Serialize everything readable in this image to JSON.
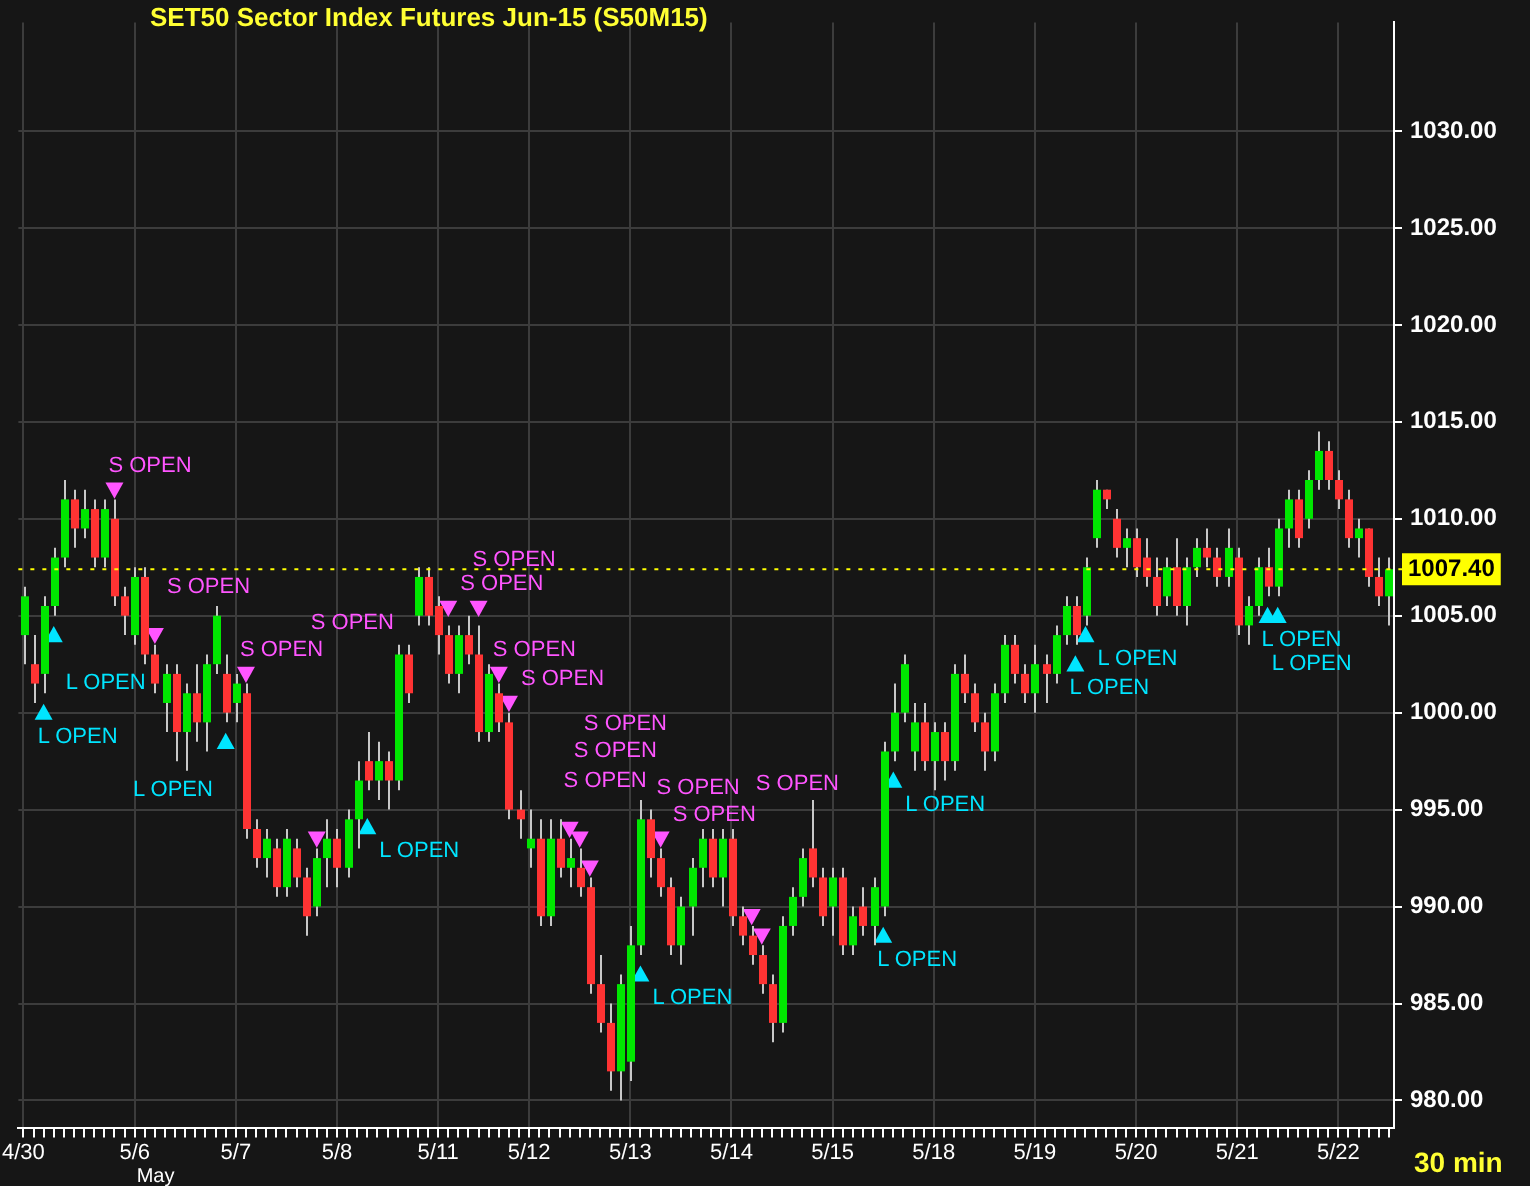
{
  "chart_data": {
    "type": "candlestick",
    "title": "SET50 Sector Index Futures Jun-15 (S50M15)",
    "categories": [
      "4/30",
      null,
      null,
      null,
      null,
      null,
      null,
      null,
      null,
      null,
      null,
      "5/6",
      null,
      null,
      null,
      null,
      null,
      null,
      null,
      null,
      null,
      "5/7",
      null,
      null,
      null,
      null,
      null,
      null,
      null,
      null,
      null,
      "5/8",
      null,
      null,
      null,
      null,
      null,
      null,
      null,
      null,
      null,
      "5/11",
      null,
      null,
      null,
      null,
      null,
      null,
      null,
      null,
      "5/12",
      null,
      null,
      null,
      null,
      null,
      null,
      null,
      null,
      null,
      "5/13",
      null,
      null,
      null,
      null,
      null,
      null,
      null,
      null,
      null,
      "5/14",
      null,
      null,
      null,
      null,
      null,
      null,
      null,
      null,
      null,
      "5/15",
      null,
      null,
      null,
      null,
      null,
      null,
      null,
      null,
      null,
      "5/18",
      null,
      null,
      null,
      null,
      null,
      null,
      null,
      null,
      null,
      "5/19",
      null,
      null,
      null,
      null,
      null,
      null,
      null,
      null,
      null,
      "5/20",
      null,
      null,
      null,
      null,
      null,
      null,
      null,
      null,
      null,
      "5/21",
      null,
      null,
      null,
      null,
      null,
      null,
      null,
      null,
      null,
      "5/22",
      null,
      null,
      null,
      null,
      null
    ],
    "ohlc": [
      [
        1004.0,
        1006.5,
        1002.5,
        1006.0
      ],
      [
        1002.5,
        1004.0,
        1000.5,
        1001.5
      ],
      [
        1002.0,
        1006.0,
        1001.0,
        1005.5
      ],
      [
        1005.5,
        1008.5,
        1005.0,
        1008.0
      ],
      [
        1008.0,
        1012.0,
        1007.5,
        1011.0
      ],
      [
        1011.0,
        1011.5,
        1008.5,
        1009.5
      ],
      [
        1009.5,
        1011.5,
        1009.0,
        1010.5
      ],
      [
        1010.5,
        1011.0,
        1007.5,
        1008.0
      ],
      [
        1008.0,
        1011.0,
        1007.5,
        1010.5
      ],
      [
        1010.0,
        1011.0,
        1005.5,
        1006.0
      ],
      [
        1006.0,
        1006.5,
        1004.0,
        1005.0
      ],
      [
        1004.0,
        1007.5,
        1003.5,
        1007.0
      ],
      [
        1007.0,
        1007.5,
        1002.5,
        1003.0
      ],
      [
        1003.0,
        1003.5,
        1001.0,
        1001.5
      ],
      [
        1000.5,
        1002.5,
        999.0,
        1002.0
      ],
      [
        1002.0,
        1002.5,
        997.5,
        999.0
      ],
      [
        999.0,
        1001.5,
        997.0,
        1001.0
      ],
      [
        1001.0,
        1002.5,
        998.5,
        999.5
      ],
      [
        999.5,
        1003.0,
        998.0,
        1002.5
      ],
      [
        1002.5,
        1005.5,
        1002.0,
        1005.0
      ],
      [
        1002.0,
        1003.0,
        999.5,
        1000.0
      ],
      [
        1000.5,
        1002.0,
        999.5,
        1001.5
      ],
      [
        1001.0,
        1001.5,
        993.5,
        994.0
      ],
      [
        994.0,
        994.5,
        992.0,
        992.5
      ],
      [
        992.5,
        994.0,
        991.5,
        993.5
      ],
      [
        993.0,
        993.5,
        990.5,
        991.0
      ],
      [
        991.0,
        994.0,
        990.5,
        993.5
      ],
      [
        993.0,
        993.5,
        991.0,
        991.5
      ],
      [
        991.5,
        992.0,
        988.5,
        989.5
      ],
      [
        990.0,
        993.0,
        989.5,
        992.5
      ],
      [
        992.5,
        994.5,
        991.0,
        993.5
      ],
      [
        993.5,
        994.0,
        991.0,
        992.0
      ],
      [
        992.0,
        995.0,
        991.5,
        994.5
      ],
      [
        994.5,
        997.5,
        993.0,
        996.5
      ],
      [
        997.5,
        999.0,
        996.0,
        996.5
      ],
      [
        996.5,
        998.5,
        995.5,
        997.5
      ],
      [
        997.5,
        998.0,
        995.0,
        996.5
      ],
      [
        996.5,
        1003.5,
        996.0,
        1003.0
      ],
      [
        1003.0,
        1003.5,
        1000.5,
        1001.0
      ],
      [
        1005.0,
        1007.5,
        1004.5,
        1007.0
      ],
      [
        1007.0,
        1007.5,
        1004.5,
        1005.0
      ],
      [
        1005.5,
        1006.0,
        1003.0,
        1004.0
      ],
      [
        1004.0,
        1004.5,
        1001.5,
        1002.0
      ],
      [
        1002.0,
        1004.5,
        1001.0,
        1004.0
      ],
      [
        1004.0,
        1005.0,
        1002.5,
        1003.0
      ],
      [
        1003.0,
        1004.5,
        998.5,
        999.0
      ],
      [
        999.0,
        1002.5,
        998.5,
        1002.0
      ],
      [
        1001.0,
        1001.5,
        999.0,
        999.5
      ],
      [
        999.5,
        1000.0,
        994.5,
        995.0
      ],
      [
        995.0,
        996.0,
        993.5,
        994.5
      ],
      [
        993.0,
        995.0,
        992.0,
        993.5
      ],
      [
        993.5,
        994.5,
        989.0,
        989.5
      ],
      [
        989.5,
        994.5,
        989.0,
        993.5
      ],
      [
        993.5,
        994.5,
        991.5,
        992.0
      ],
      [
        992.0,
        993.5,
        991.0,
        992.5
      ],
      [
        992.0,
        993.0,
        990.5,
        991.0
      ],
      [
        991.0,
        991.5,
        985.5,
        986.0
      ],
      [
        986.0,
        987.5,
        983.5,
        984.0
      ],
      [
        984.0,
        985.0,
        980.5,
        981.5
      ],
      [
        981.5,
        986.5,
        980.0,
        986.0
      ],
      [
        982.0,
        989.0,
        981.0,
        988.0
      ],
      [
        988.0,
        995.5,
        987.5,
        994.5
      ],
      [
        994.5,
        995.0,
        991.5,
        992.5
      ],
      [
        992.5,
        993.0,
        990.5,
        991.0
      ],
      [
        991.0,
        991.5,
        987.5,
        988.0
      ],
      [
        988.0,
        990.5,
        987.0,
        990.0
      ],
      [
        990.0,
        992.5,
        988.5,
        992.0
      ],
      [
        992.0,
        994.0,
        991.0,
        993.5
      ],
      [
        993.5,
        994.0,
        991.0,
        991.5
      ],
      [
        991.5,
        994.0,
        990.0,
        993.5
      ],
      [
        993.5,
        994.0,
        989.0,
        989.5
      ],
      [
        989.5,
        990.0,
        988.0,
        988.5
      ],
      [
        988.5,
        989.0,
        987.0,
        987.5
      ],
      [
        987.5,
        988.0,
        985.5,
        986.0
      ],
      [
        986.0,
        986.5,
        983.0,
        984.0
      ],
      [
        984.0,
        989.5,
        983.5,
        989.0
      ],
      [
        989.0,
        991.0,
        988.5,
        990.5
      ],
      [
        990.5,
        993.0,
        990.0,
        992.5
      ],
      [
        993.0,
        995.5,
        991.0,
        991.5
      ],
      [
        991.5,
        992.0,
        989.0,
        989.5
      ],
      [
        990.0,
        992.0,
        988.5,
        991.5
      ],
      [
        991.5,
        992.0,
        987.5,
        988.0
      ],
      [
        988.0,
        990.0,
        987.5,
        989.5
      ],
      [
        990.0,
        991.0,
        988.5,
        989.0
      ],
      [
        989.0,
        991.5,
        988.0,
        991.0
      ],
      [
        990.0,
        998.5,
        989.5,
        998.0
      ],
      [
        998.0,
        1001.5,
        997.5,
        1000.0
      ],
      [
        1000.0,
        1003.0,
        999.5,
        1002.5
      ],
      [
        998.0,
        1000.5,
        997.0,
        999.5
      ],
      [
        999.5,
        1000.5,
        997.0,
        997.5
      ],
      [
        997.5,
        999.5,
        996.0,
        999.0
      ],
      [
        999.0,
        999.5,
        996.5,
        997.5
      ],
      [
        997.5,
        1002.5,
        997.0,
        1002.0
      ],
      [
        1002.0,
        1003.0,
        1000.5,
        1001.0
      ],
      [
        1001.0,
        1001.5,
        999.0,
        999.5
      ],
      [
        999.5,
        1000.0,
        997.0,
        998.0
      ],
      [
        998.0,
        1001.5,
        997.5,
        1001.0
      ],
      [
        1001.0,
        1004.0,
        1000.5,
        1003.5
      ],
      [
        1003.5,
        1004.0,
        1001.5,
        1002.0
      ],
      [
        1002.0,
        1002.5,
        1000.5,
        1001.0
      ],
      [
        1001.0,
        1003.5,
        1000.0,
        1002.5
      ],
      [
        1002.5,
        1003.0,
        1000.5,
        1002.0
      ],
      [
        1002.0,
        1004.5,
        1001.5,
        1004.0
      ],
      [
        1004.0,
        1006.0,
        1003.5,
        1005.5
      ],
      [
        1005.5,
        1006.0,
        1003.5,
        1004.0
      ],
      [
        1005.0,
        1008.0,
        1004.5,
        1007.5
      ],
      [
        1009.0,
        1012.0,
        1008.5,
        1011.5
      ],
      [
        1011.5,
        1011.5,
        1010.5,
        1011.0
      ],
      [
        1010.0,
        1010.5,
        1008.0,
        1008.5
      ],
      [
        1008.5,
        1009.5,
        1007.5,
        1009.0
      ],
      [
        1009.0,
        1009.5,
        1007.0,
        1007.5
      ],
      [
        1008.0,
        1009.0,
        1006.5,
        1007.0
      ],
      [
        1007.0,
        1008.0,
        1005.0,
        1005.5
      ],
      [
        1006.0,
        1008.0,
        1005.5,
        1007.5
      ],
      [
        1007.5,
        1009.0,
        1005.0,
        1005.5
      ],
      [
        1005.5,
        1008.0,
        1004.5,
        1007.5
      ],
      [
        1007.5,
        1009.0,
        1007.0,
        1008.5
      ],
      [
        1008.5,
        1009.5,
        1007.5,
        1008.0
      ],
      [
        1008.0,
        1008.5,
        1006.5,
        1007.0
      ],
      [
        1007.0,
        1009.5,
        1006.5,
        1008.5
      ],
      [
        1008.0,
        1008.5,
        1004.0,
        1004.5
      ],
      [
        1004.5,
        1006.0,
        1003.5,
        1005.5
      ],
      [
        1005.5,
        1008.0,
        1005.0,
        1007.5
      ],
      [
        1007.5,
        1008.5,
        1006.0,
        1006.5
      ],
      [
        1006.5,
        1010.0,
        1006.0,
        1009.5
      ],
      [
        1009.5,
        1011.5,
        1008.5,
        1011.0
      ],
      [
        1011.0,
        1011.5,
        1008.5,
        1009.0
      ],
      [
        1010.0,
        1012.5,
        1009.5,
        1012.0
      ],
      [
        1012.0,
        1014.5,
        1011.5,
        1013.5
      ],
      [
        1013.5,
        1014.0,
        1011.5,
        1012.0
      ],
      [
        1012.0,
        1012.5,
        1010.5,
        1011.0
      ],
      [
        1011.0,
        1011.5,
        1008.5,
        1009.0
      ],
      [
        1009.0,
        1010.0,
        1008.0,
        1009.5
      ],
      [
        1009.5,
        1009.5,
        1006.5,
        1007.0
      ],
      [
        1007.0,
        1008.0,
        1005.5,
        1006.0
      ],
      [
        1006.0,
        1008.0,
        1004.5,
        1007.4
      ]
    ],
    "colors": [
      "#00e600",
      "#ff3333",
      "#00e600",
      "#00e600",
      "#00e600",
      "#ff3333",
      "#00e600",
      "#ff3333",
      "#00e600",
      "#ff3333",
      "#ff3333",
      "#00e600",
      "#ff3333",
      "#ff3333",
      "#00e600",
      "#ff3333",
      "#00e600",
      "#ff3333",
      "#00e600",
      "#00e600",
      "#ff3333",
      "#00e600",
      "#ff3333",
      "#ff3333",
      "#00e600",
      "#ff3333",
      "#00e600",
      "#ff3333",
      "#ff3333",
      "#00e600",
      "#00e600",
      "#ff3333",
      "#00e600",
      "#00e600",
      "#ff3333",
      "#00e600",
      "#ff3333",
      "#00e600",
      "#ff3333",
      "#00e600",
      "#ff3333",
      "#ff3333",
      "#ff3333",
      "#00e600",
      "#ff3333",
      "#ff3333",
      "#00e600",
      "#ff3333",
      "#ff3333",
      "#ff3333",
      "#00e600",
      "#ff3333",
      "#00e600",
      "#ff3333",
      "#00e600",
      "#ff3333",
      "#ff3333",
      "#ff3333",
      "#ff3333",
      "#00e600",
      "#00e600",
      "#00e600",
      "#ff3333",
      "#ff3333",
      "#ff3333",
      "#00e600",
      "#00e600",
      "#00e600",
      "#ff3333",
      "#00e600",
      "#ff3333",
      "#ff3333",
      "#ff3333",
      "#ff3333",
      "#ff3333",
      "#00e600",
      "#00e600",
      "#00e600",
      "#ff3333",
      "#ff3333",
      "#00e600",
      "#ff3333",
      "#00e600",
      "#ff3333",
      "#00e600",
      "#00e600",
      "#00e600",
      "#00e600",
      "#00e600",
      "#ff3333",
      "#00e600",
      "#ff3333",
      "#00e600",
      "#ff3333",
      "#ff3333",
      "#ff3333",
      "#00e600",
      "#00e600",
      "#ff3333",
      "#ff3333",
      "#00e600",
      "#ff3333",
      "#00e600",
      "#00e600",
      "#ff3333",
      "#00e600",
      "#00e600",
      "#ff3333",
      "#ff3333",
      "#00e600",
      "#ff3333",
      "#ff3333",
      "#ff3333",
      "#00e600",
      "#ff3333",
      "#00e600",
      "#00e600",
      "#ff3333",
      "#ff3333",
      "#00e600",
      "#ff3333",
      "#00e600",
      "#00e600",
      "#ff3333",
      "#00e600",
      "#00e600",
      "#ff3333",
      "#00e600",
      "#00e600",
      "#ff3333",
      "#ff3333",
      "#ff3333",
      "#00e600",
      "#ff3333",
      "#ff3333",
      "#00e600"
    ],
    "series": [
      {
        "type": "scatter",
        "name": "L OPEN",
        "color": "#00e5ff",
        "marker": "triangle",
        "values": [
          null,
          null,
          1000.0,
          1004.0,
          null,
          null,
          null,
          null,
          null,
          null,
          null,
          null,
          null,
          null,
          null,
          null,
          null,
          null,
          null,
          null,
          998.5,
          null,
          null,
          null,
          null,
          null,
          null,
          null,
          null,
          null,
          null,
          null,
          null,
          null,
          994.1,
          null,
          null,
          null,
          null,
          null,
          null,
          null,
          null,
          null,
          null,
          null,
          null,
          null,
          null,
          null,
          null,
          null,
          null,
          null,
          null,
          null,
          null,
          null,
          null,
          null,
          null,
          986.5,
          null,
          null,
          null,
          null,
          null,
          null,
          null,
          null,
          null,
          null,
          null,
          null,
          null,
          null,
          null,
          null,
          null,
          null,
          null,
          null,
          null,
          null,
          null,
          988.5,
          996.5,
          null,
          null,
          null,
          null,
          null,
          null,
          null,
          null,
          null,
          null,
          null,
          null,
          null,
          null,
          null,
          null,
          null,
          1002.5,
          1004.0,
          null,
          null,
          null,
          null,
          null,
          null,
          null,
          null,
          null,
          null,
          null,
          null,
          null,
          null,
          null,
          null,
          null,
          1005.0,
          1005.0,
          null,
          null,
          null,
          null,
          null,
          null,
          null,
          null,
          null,
          null,
          null
        ]
      },
      {
        "type": "scatter",
        "name": "S OPEN",
        "color": "#ff55ff",
        "marker": "triangle",
        "values": [
          null,
          null,
          null,
          null,
          null,
          null,
          null,
          null,
          null,
          1011.5,
          null,
          null,
          null,
          1004.0,
          null,
          null,
          null,
          null,
          null,
          null,
          null,
          null,
          1002.0,
          null,
          null,
          null,
          null,
          null,
          null,
          993.5,
          null,
          null,
          null,
          null,
          null,
          null,
          null,
          null,
          null,
          null,
          null,
          null,
          1005.4,
          null,
          null,
          1005.4,
          null,
          1002.0,
          1000.5,
          null,
          null,
          null,
          null,
          null,
          994.0,
          993.5,
          992.0,
          null,
          null,
          null,
          null,
          null,
          null,
          993.5,
          null,
          null,
          null,
          null,
          null,
          null,
          null,
          null,
          989.5,
          988.5,
          null,
          null,
          null,
          null,
          null,
          null,
          null,
          null,
          null,
          null,
          null,
          null,
          null,
          null,
          null,
          null,
          null,
          null,
          null,
          null,
          null,
          null,
          null,
          null,
          null,
          null,
          null,
          null,
          null,
          null,
          null,
          null,
          null,
          null,
          null,
          null,
          null,
          null,
          null,
          null,
          null,
          null,
          null,
          null,
          null,
          null,
          null,
          null,
          null,
          null,
          null,
          null,
          null,
          null,
          null,
          null,
          null,
          null,
          null,
          null,
          null,
          null
        ]
      }
    ],
    "ylim": [
      978.6,
      1035.6
    ],
    "yticks": [
      {
        "value": 980,
        "label": "980.00"
      },
      {
        "value": 985,
        "label": "985.00"
      },
      {
        "value": 990,
        "label": "990.00"
      },
      {
        "value": 995,
        "label": "995.00"
      },
      {
        "value": 1000,
        "label": "1000.00"
      },
      {
        "value": 1005,
        "label": "1005.00"
      },
      {
        "value": 1010,
        "label": "1010.00"
      },
      {
        "value": 1015,
        "label": "1015.00"
      },
      {
        "value": 1020,
        "label": "1020.00"
      },
      {
        "value": 1025,
        "label": "1025.00"
      },
      {
        "value": 1030,
        "label": "1030.00"
      }
    ],
    "grid": true,
    "ref_lines": [
      {
        "axis": "y",
        "value": 1007.4,
        "label": "1007.40",
        "color": "#ffff00"
      }
    ],
    "annotations": [
      "30 min",
      "May"
    ]
  }
}
